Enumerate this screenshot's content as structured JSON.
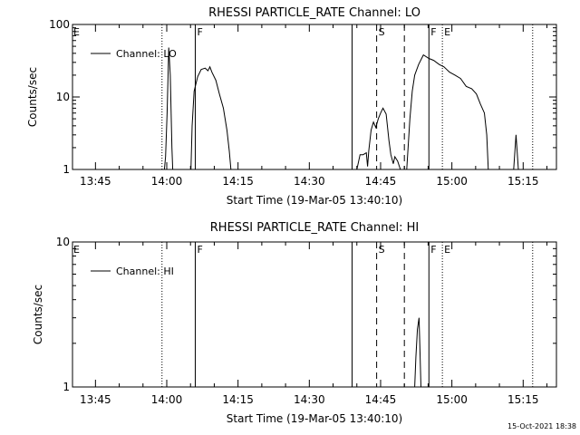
{
  "footer": {
    "timestamp": "15-Oct-2021 18:38"
  },
  "chart_data": [
    {
      "type": "line",
      "title": "RHESSI PARTICLE_RATE Channel: LO",
      "xlabel": "Start Time (19-Mar-05 13:40:10)",
      "ylabel": "Counts/sec",
      "yscale": "log",
      "ylim": [
        1,
        100
      ],
      "xlim": [
        "13:40:10",
        "15:22:00"
      ],
      "yticks": [
        {
          "v": 1,
          "label": "1"
        },
        {
          "v": 10,
          "label": "10"
        },
        {
          "v": 100,
          "label": "100"
        }
      ],
      "xticks": [
        {
          "t": "13:45",
          "label": "13:45"
        },
        {
          "t": "14:00",
          "label": "14:00"
        },
        {
          "t": "14:15",
          "label": "14:15"
        },
        {
          "t": "14:30",
          "label": "14:30"
        },
        {
          "t": "14:45",
          "label": "14:45"
        },
        {
          "t": "15:00",
          "label": "15:00"
        },
        {
          "t": "15:15",
          "label": "15:15"
        }
      ],
      "legend": {
        "position": "top-left",
        "entries": [
          "Channel: LO"
        ]
      },
      "event_markers": [
        {
          "t": "13:59:00",
          "style": "dotted",
          "label": "E"
        },
        {
          "t": "14:06:00",
          "style": "solid",
          "label": "F"
        },
        {
          "t": "14:39:00",
          "style": "solid",
          "label": ""
        },
        {
          "t": "14:44:10",
          "style": "dashed",
          "label": "S"
        },
        {
          "t": "14:50:00",
          "style": "dashed",
          "label": ""
        },
        {
          "t": "14:55:10",
          "style": "solid",
          "label": "F"
        },
        {
          "t": "14:58:00",
          "style": "dotted",
          "label": "E"
        },
        {
          "t": "15:17:00",
          "style": "dotted",
          "label": ""
        }
      ],
      "series": [
        {
          "name": "Channel: LO",
          "segments": [
            [
              [
                "13:59:30",
                1
              ],
              [
                "13:59:45",
                1.5
              ],
              [
                "14:00:05",
                6
              ],
              [
                "14:00:25",
                48
              ],
              [
                "14:00:45",
                20
              ],
              [
                "14:01:05",
                2
              ],
              [
                "14:01:15",
                1
              ]
            ],
            [
              [
                "14:05:05",
                1
              ],
              [
                "14:05:20",
                4
              ],
              [
                "14:05:45",
                12
              ],
              [
                "14:06:30",
                19
              ],
              [
                "14:07:15",
                24
              ],
              [
                "14:08:05",
                25
              ],
              [
                "14:08:40",
                23
              ],
              [
                "14:09:05",
                26
              ],
              [
                "14:09:30",
                22
              ],
              [
                "14:10:20",
                17
              ],
              [
                "14:11:05",
                11
              ],
              [
                "14:11:55",
                7
              ],
              [
                "14:12:40",
                3.5
              ],
              [
                "14:13:10",
                1.8
              ],
              [
                "14:13:30",
                1
              ]
            ],
            [
              [
                "14:40:00",
                1
              ],
              [
                "14:40:40",
                1.6
              ],
              [
                "14:41:20",
                1.6
              ],
              [
                "14:42:00",
                1.7
              ],
              [
                "14:42:15",
                1.1
              ],
              [
                "14:42:30",
                1.8
              ],
              [
                "14:43:00",
                3.5
              ],
              [
                "14:43:30",
                4.5
              ],
              [
                "14:44:00",
                3.8
              ],
              [
                "14:44:30",
                5
              ],
              [
                "14:45:00",
                6
              ],
              [
                "14:45:30",
                7
              ],
              [
                "14:46:10",
                5.8
              ],
              [
                "14:46:45",
                2.5
              ],
              [
                "14:47:10",
                1.6
              ],
              [
                "14:47:40",
                1.2
              ],
              [
                "14:48:00",
                1.5
              ],
              [
                "14:48:35",
                1.3
              ],
              [
                "14:49:10",
                1
              ]
            ],
            [
              [
                "14:50:30",
                1
              ],
              [
                "14:51:10",
                5
              ],
              [
                "14:51:40",
                12
              ],
              [
                "14:52:10",
                20
              ],
              [
                "14:53:00",
                28
              ],
              [
                "14:54:00",
                38
              ],
              [
                "14:55:10",
                34
              ],
              [
                "14:56:10",
                32
              ],
              [
                "14:57:20",
                28
              ],
              [
                "14:58:20",
                26
              ],
              [
                "14:59:30",
                22
              ],
              [
                "15:00:40",
                20
              ],
              [
                "15:01:50",
                18
              ],
              [
                "15:03:00",
                14
              ],
              [
                "15:04:10",
                13
              ],
              [
                "15:05:10",
                11
              ],
              [
                "15:06:00",
                8
              ],
              [
                "15:06:50",
                6
              ],
              [
                "15:07:20",
                3
              ],
              [
                "15:07:40",
                1
              ]
            ],
            [
              [
                "15:13:00",
                1
              ],
              [
                "15:13:30",
                3
              ],
              [
                "15:14:00",
                1
              ]
            ]
          ]
        }
      ]
    },
    {
      "type": "line",
      "title": "RHESSI PARTICLE_RATE Channel: HI",
      "xlabel": "Start Time (19-Mar-05 13:40:10)",
      "ylabel": "Counts/sec",
      "yscale": "log",
      "ylim": [
        1,
        10
      ],
      "xlim": [
        "13:40:10",
        "15:22:00"
      ],
      "yticks": [
        {
          "v": 1,
          "label": "1"
        },
        {
          "v": 10,
          "label": "10"
        }
      ],
      "xticks": [
        {
          "t": "13:45",
          "label": "13:45"
        },
        {
          "t": "14:00",
          "label": "14:00"
        },
        {
          "t": "14:15",
          "label": "14:15"
        },
        {
          "t": "14:30",
          "label": "14:30"
        },
        {
          "t": "14:45",
          "label": "14:45"
        },
        {
          "t": "15:00",
          "label": "15:00"
        },
        {
          "t": "15:15",
          "label": "15:15"
        }
      ],
      "legend": {
        "position": "top-left",
        "entries": [
          "Channel: HI"
        ]
      },
      "event_markers": [
        {
          "t": "13:59:00",
          "style": "dotted",
          "label": "E"
        },
        {
          "t": "14:06:00",
          "style": "solid",
          "label": "F"
        },
        {
          "t": "14:39:00",
          "style": "solid",
          "label": ""
        },
        {
          "t": "14:44:10",
          "style": "dashed",
          "label": "S"
        },
        {
          "t": "14:50:00",
          "style": "dashed",
          "label": ""
        },
        {
          "t": "14:55:10",
          "style": "solid",
          "label": "F"
        },
        {
          "t": "14:58:00",
          "style": "dotted",
          "label": "E"
        },
        {
          "t": "15:17:00",
          "style": "dotted",
          "label": ""
        }
      ],
      "series": [
        {
          "name": "Channel: HI",
          "segments": [
            [
              [
                "14:52:10",
                1
              ],
              [
                "14:52:25",
                1.6
              ],
              [
                "14:52:45",
                2.5
              ],
              [
                "14:53:05",
                3
              ],
              [
                "14:53:15",
                2
              ],
              [
                "14:53:30",
                1
              ]
            ]
          ]
        }
      ]
    }
  ]
}
